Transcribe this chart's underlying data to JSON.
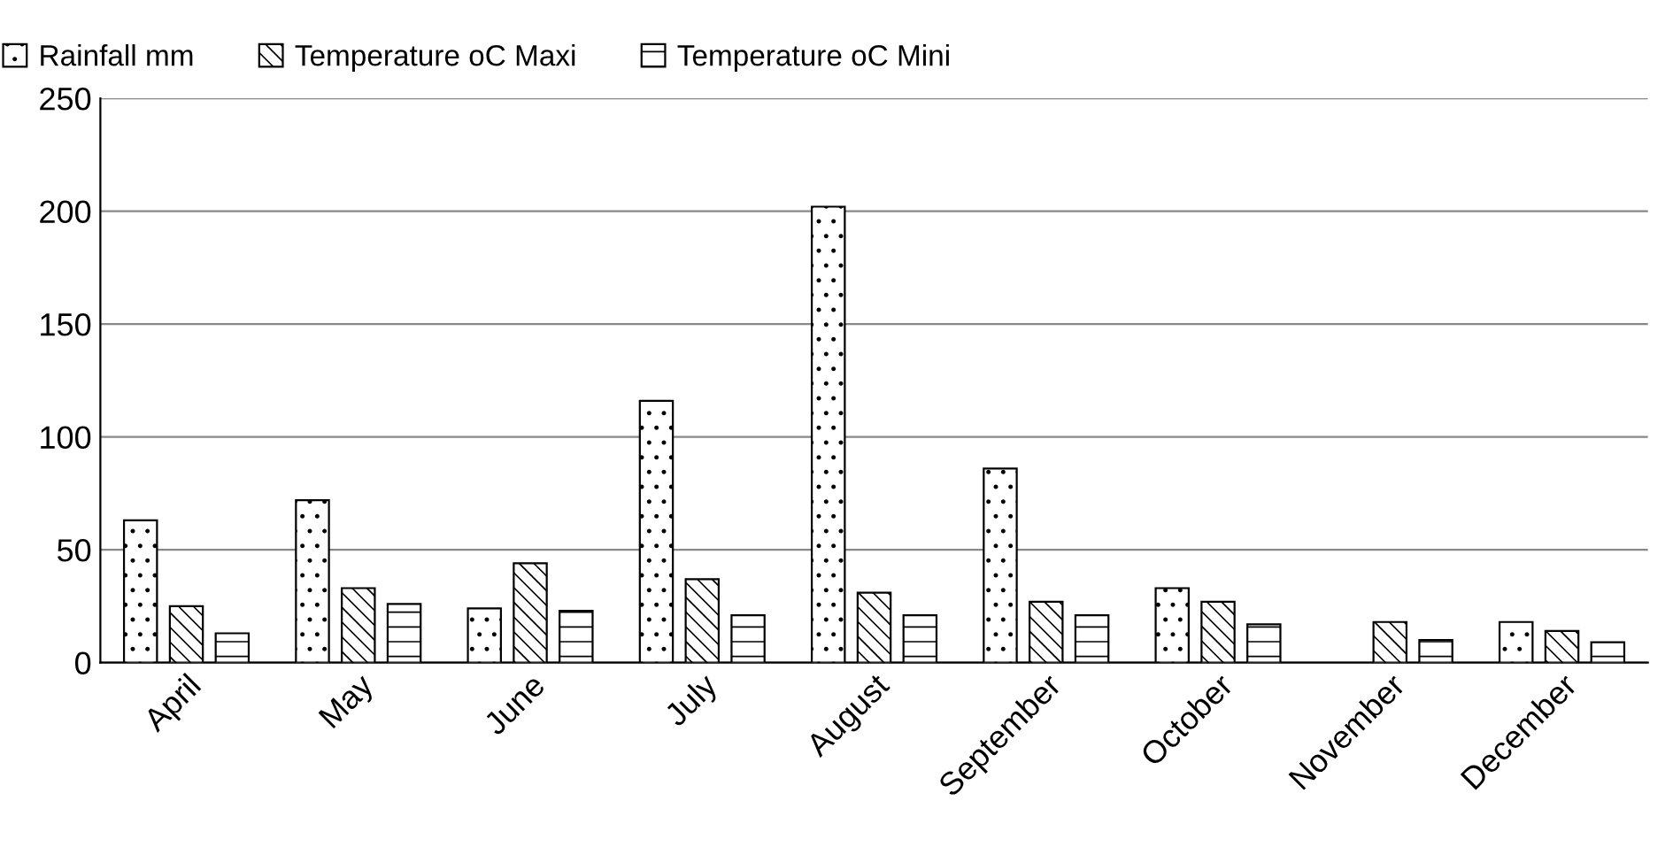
{
  "chart_data": {
    "type": "bar",
    "categories": [
      "April",
      "May",
      "June",
      "July",
      "August",
      "September",
      "October",
      "November",
      "December"
    ],
    "series": [
      {
        "name": "Rainfall mm",
        "color": "#000000",
        "values": [
          63,
          72,
          24,
          116,
          202,
          86,
          33,
          null,
          18
        ]
      },
      {
        "name": "Temperature oC Maxi",
        "color": "#000000",
        "values": [
          25,
          33,
          44,
          37,
          31,
          27,
          27,
          18,
          14
        ]
      },
      {
        "name": "Temperature oC Mini",
        "color": "#000000",
        "values": [
          13,
          26,
          23,
          21,
          21,
          21,
          17,
          10,
          9
        ]
      }
    ],
    "ylim": [
      0,
      250
    ],
    "yticks": [
      0,
      50,
      100,
      150,
      200,
      250
    ],
    "grid": "y",
    "legend": "top"
  }
}
